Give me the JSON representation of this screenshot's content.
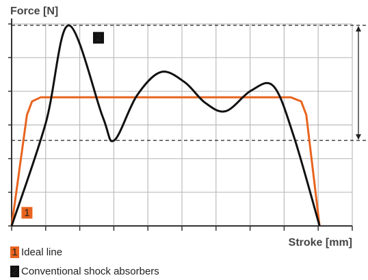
{
  "chart_data": {
    "type": "line",
    "y_label": "Force [N]",
    "x_label": "Stroke [mm]",
    "xlim": [
      0,
      10
    ],
    "ylim": [
      0,
      6
    ],
    "xticks": [
      0,
      1,
      2,
      3,
      4,
      5,
      6,
      7,
      8,
      9,
      10
    ],
    "yticks": [
      0,
      1,
      2,
      3,
      4,
      5,
      6
    ],
    "grid": true,
    "reference_lines": [
      5.96,
      2.54
    ],
    "series": [
      {
        "name": "Ideal line",
        "marker": "1",
        "color": "#e8641e",
        "smooth": false,
        "x": [
          0,
          0.45,
          0.6,
          0.85,
          8.2,
          8.5,
          8.65,
          9.04
        ],
        "values": [
          0,
          3.3,
          3.7,
          3.82,
          3.82,
          3.7,
          3.3,
          0
        ],
        "marker_at": [
          0.45,
          0.4
        ]
      },
      {
        "name": "Conventional shock absorbers",
        "marker": "2",
        "color": "#111111",
        "smooth": true,
        "x": [
          0,
          1,
          1.67,
          2.67,
          3.01,
          3.67,
          4.38,
          5.08,
          5.68,
          6.29,
          7.03,
          7.69,
          8.29,
          9.04
        ],
        "values": [
          0,
          3.05,
          5.96,
          3.25,
          2.54,
          3.86,
          4.57,
          4.27,
          3.66,
          3.41,
          4.02,
          4.15,
          2.64,
          0
        ],
        "marker_at": [
          2.55,
          5.6
        ]
      }
    ]
  }
}
